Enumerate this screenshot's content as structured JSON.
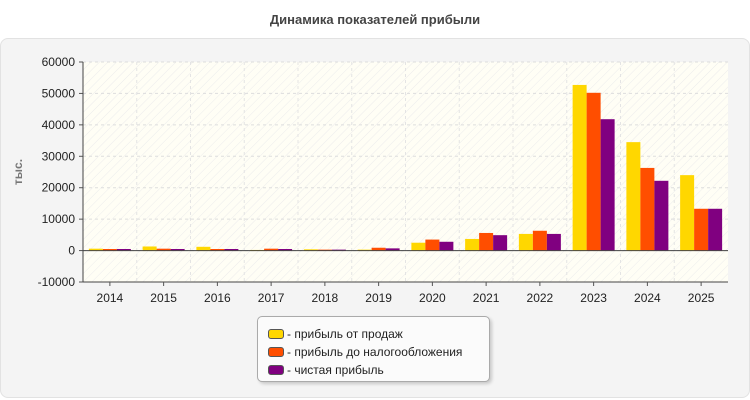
{
  "chart_data": {
    "type": "bar",
    "title": "Динамика показателей прибыли",
    "ylabel": "тыс.",
    "xlabel": "",
    "categories": [
      "2014",
      "2015",
      "2016",
      "2017",
      "2018",
      "2019",
      "2020",
      "2021",
      "2022",
      "2023",
      "2024",
      "2025"
    ],
    "ylim": [
      -10000,
      60000
    ],
    "yticks": [
      -10000,
      0,
      10000,
      20000,
      30000,
      40000,
      50000,
      60000
    ],
    "grid": true,
    "legend_position": "bottom",
    "series": [
      {
        "name": "- прибыль от продаж",
        "color": "#ffd700",
        "values": [
          600,
          1300,
          1200,
          200,
          400,
          300,
          2500,
          3700,
          5300,
          52700,
          34500,
          24000
        ]
      },
      {
        "name": "- прибыль до налогообложения",
        "color": "#ff4e00",
        "values": [
          500,
          600,
          500,
          600,
          300,
          900,
          3500,
          5600,
          6300,
          50200,
          26300,
          13300
        ]
      },
      {
        "name": "- чистая прибыль",
        "color": "#800080",
        "values": [
          500,
          500,
          500,
          500,
          300,
          700,
          2800,
          4900,
          5300,
          41800,
          22200,
          13300
        ]
      }
    ]
  }
}
